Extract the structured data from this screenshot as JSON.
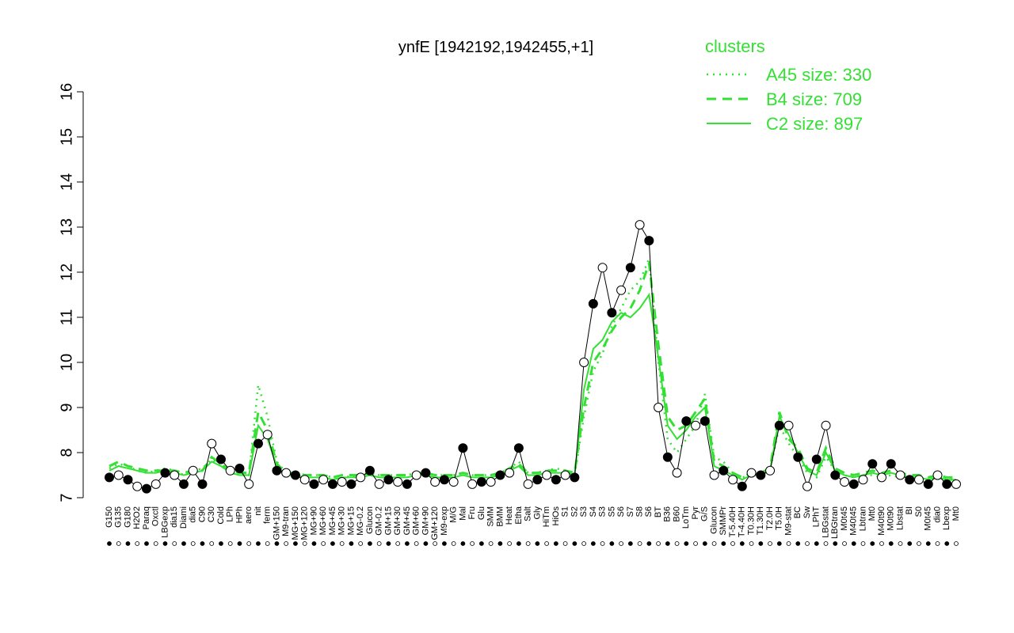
{
  "chart_data": {
    "type": "line",
    "title": "ynfE [1942192,1942455,+1]",
    "categories": [
      "G150",
      "G135",
      "G180",
      "H2O2",
      "Paraq",
      "Oxctl",
      "LBGexp",
      "dia15",
      "Diami",
      "dia5",
      "C90",
      "C30",
      "Cold",
      "LPh",
      "HPh",
      "aero",
      "nit",
      "ferm",
      "GM+150",
      "M9-tran",
      "MG+150",
      "MG+120",
      "MG+90",
      "MG+60",
      "MG+45",
      "MG+30",
      "MG+15",
      "MG-0.2",
      "Glucon",
      "GM-0.2",
      "GM+15",
      "GM+30",
      "GM+45",
      "GM+60",
      "GM+90",
      "GM+120",
      "M9-exp",
      "M/G",
      "Mal",
      "Fru",
      "Glu",
      "SMM",
      "BMM",
      "Heat",
      "Etha",
      "Salt",
      "Gly",
      "HiTm",
      "HiOs",
      "S1",
      "S2",
      "S3",
      "S4",
      "S3",
      "S5",
      "S6",
      "S7",
      "S8",
      "S6",
      "BT",
      "B36",
      "B60",
      "LoTm",
      "Pyr",
      "G/S",
      "Glucon",
      "SMMPr",
      "T-5.40H",
      "T-4.40H",
      "T0.30H",
      "T1.30H",
      "T2.0H",
      "T5.0H",
      "M9-stat",
      "BC",
      "Sw",
      "LPhT",
      "LBGstat",
      "LBGtran",
      "M0t45",
      "M40t45",
      "Lbtran",
      "Mt0",
      "M40t90",
      "M0t90",
      "Lbstat",
      "BI",
      "S0",
      "M0t45",
      "dia0",
      "Lbexp",
      "Mt0"
    ],
    "values": [
      7.45,
      7.5,
      7.4,
      7.25,
      7.2,
      7.3,
      7.55,
      7.5,
      7.3,
      7.6,
      7.3,
      8.2,
      7.85,
      7.6,
      7.65,
      7.3,
      8.2,
      8.4,
      7.6,
      7.55,
      7.5,
      7.4,
      7.3,
      7.4,
      7.3,
      7.35,
      7.3,
      7.45,
      7.6,
      7.3,
      7.4,
      7.35,
      7.3,
      7.5,
      7.55,
      7.35,
      7.4,
      7.35,
      8.1,
      7.3,
      7.35,
      7.35,
      7.5,
      7.55,
      8.1,
      7.3,
      7.4,
      7.5,
      7.4,
      7.5,
      7.45,
      10.0,
      11.3,
      12.1,
      11.1,
      11.6,
      12.1,
      13.05,
      12.7,
      9.0,
      7.9,
      7.55,
      8.7,
      8.6,
      8.7,
      7.5,
      7.6,
      7.4,
      7.25,
      7.55,
      7.5,
      7.6,
      8.6,
      8.6,
      7.9,
      7.25,
      7.85,
      8.6,
      7.5,
      7.35,
      7.3,
      7.4,
      7.75,
      7.45,
      7.75,
      7.5,
      7.4,
      7.4,
      7.3,
      7.5,
      7.3,
      7.3
    ],
    "point_color": "#000000",
    "legend_title": "clusters",
    "legend": "top-right",
    "series": [
      {
        "name": "A45 size: 330",
        "color": "#33e033",
        "style": "dotted",
        "values": [
          7.65,
          7.75,
          7.7,
          7.6,
          7.55,
          7.6,
          7.65,
          7.6,
          7.5,
          7.6,
          7.65,
          7.85,
          7.7,
          7.6,
          7.55,
          7.5,
          9.5,
          8.8,
          7.8,
          7.55,
          7.55,
          7.5,
          7.5,
          7.5,
          7.45,
          7.5,
          7.45,
          7.5,
          7.55,
          7.5,
          7.5,
          7.5,
          7.5,
          7.55,
          7.55,
          7.5,
          7.5,
          7.5,
          7.55,
          7.5,
          7.5,
          7.5,
          7.55,
          7.65,
          7.8,
          7.55,
          7.55,
          7.6,
          7.65,
          7.6,
          7.5,
          8.8,
          9.8,
          10.2,
          10.8,
          11.2,
          11.6,
          11.8,
          12.3,
          10.0,
          8.3,
          8.0,
          8.3,
          8.6,
          9.3,
          7.9,
          7.8,
          7.55,
          7.45,
          7.5,
          7.5,
          7.6,
          8.6,
          8.2,
          7.9,
          7.55,
          7.45,
          7.9,
          7.6,
          7.5,
          7.45,
          7.5,
          7.5,
          7.45,
          7.5,
          7.45,
          7.4,
          7.45,
          7.4,
          7.45,
          7.4,
          7.4
        ]
      },
      {
        "name": "B4 size: 709",
        "color": "#33e033",
        "style": "dashed",
        "values": [
          7.7,
          7.8,
          7.7,
          7.65,
          7.6,
          7.6,
          7.6,
          7.6,
          7.55,
          7.6,
          7.6,
          7.9,
          7.75,
          7.6,
          7.55,
          7.55,
          8.9,
          8.5,
          7.75,
          7.55,
          7.55,
          7.5,
          7.5,
          7.5,
          7.45,
          7.5,
          7.5,
          7.5,
          7.55,
          7.5,
          7.5,
          7.5,
          7.5,
          7.55,
          7.55,
          7.5,
          7.5,
          7.5,
          7.55,
          7.5,
          7.5,
          7.5,
          7.55,
          7.65,
          7.75,
          7.55,
          7.55,
          7.6,
          7.6,
          7.6,
          7.55,
          9.0,
          10.0,
          10.3,
          10.7,
          11.0,
          11.2,
          11.6,
          12.2,
          10.4,
          8.8,
          8.5,
          8.6,
          8.9,
          9.2,
          7.8,
          7.7,
          7.55,
          7.45,
          7.55,
          7.55,
          7.65,
          8.9,
          8.3,
          8.1,
          7.65,
          7.55,
          8.1,
          7.65,
          7.55,
          7.5,
          7.55,
          7.6,
          7.55,
          7.6,
          7.55,
          7.5,
          7.5,
          7.45,
          7.5,
          7.45,
          7.45
        ]
      },
      {
        "name": "C2 size: 897",
        "color": "#33e033",
        "style": "solid",
        "values": [
          7.6,
          7.7,
          7.65,
          7.6,
          7.55,
          7.55,
          7.6,
          7.55,
          7.5,
          7.55,
          7.6,
          7.8,
          7.7,
          7.55,
          7.5,
          7.5,
          8.6,
          8.3,
          7.7,
          7.5,
          7.5,
          7.45,
          7.45,
          7.45,
          7.4,
          7.45,
          7.45,
          7.45,
          7.5,
          7.45,
          7.45,
          7.45,
          7.45,
          7.5,
          7.5,
          7.45,
          7.45,
          7.45,
          7.5,
          7.45,
          7.45,
          7.45,
          7.5,
          7.6,
          7.7,
          7.5,
          7.5,
          7.55,
          7.55,
          7.55,
          7.5,
          9.4,
          10.3,
          10.5,
          10.9,
          11.1,
          11.0,
          11.2,
          11.5,
          10.1,
          8.6,
          8.3,
          8.5,
          8.8,
          9.0,
          7.7,
          7.6,
          7.5,
          7.4,
          7.5,
          7.5,
          7.6,
          8.8,
          8.4,
          8.0,
          7.6,
          7.5,
          8.0,
          7.6,
          7.5,
          7.45,
          7.5,
          7.55,
          7.5,
          7.55,
          7.5,
          7.45,
          7.45,
          7.4,
          7.45,
          7.4,
          7.4
        ]
      }
    ],
    "ylim": [
      7,
      16
    ],
    "yticks": [
      7,
      8,
      9,
      10,
      11,
      12,
      13,
      14,
      15,
      16
    ]
  }
}
